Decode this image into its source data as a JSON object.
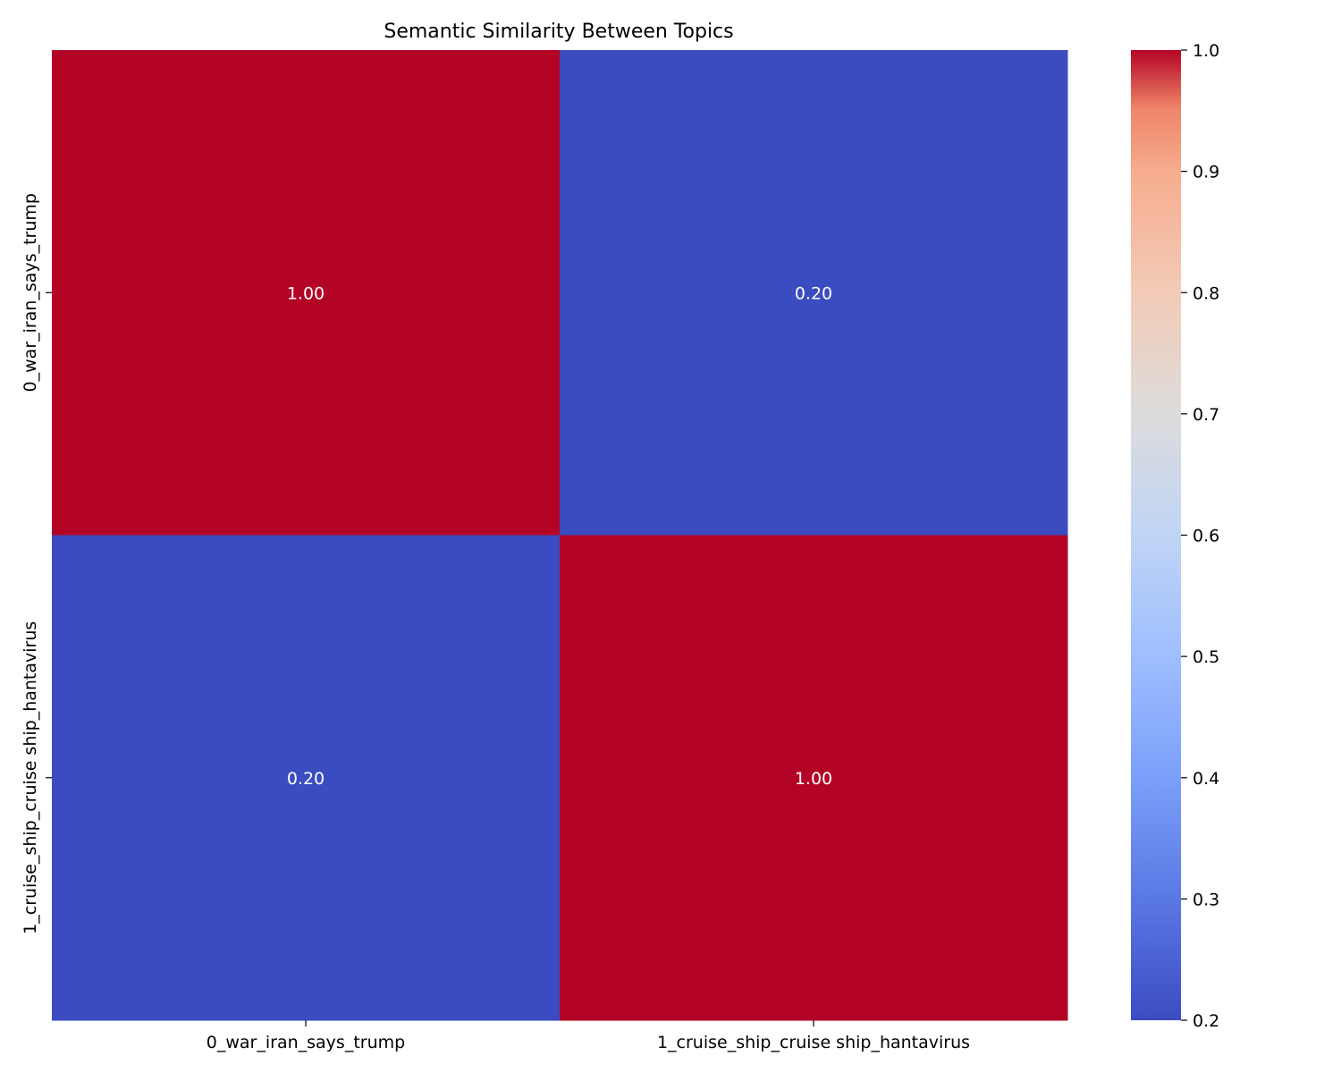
{
  "chart_data": {
    "type": "heatmap",
    "title": "Semantic Similarity Between Topics",
    "xlabel": "",
    "ylabel": "",
    "x_categories": [
      "0_war_iran_says_trump",
      "1_cruise_ship_cruise ship_hantavirus"
    ],
    "y_categories": [
      "0_war_iran_says_trump",
      "1_cruise_ship_cruise ship_hantavirus"
    ],
    "values": [
      [
        1.0,
        0.2
      ],
      [
        0.2,
        1.0
      ]
    ],
    "cell_labels": [
      [
        "1.00",
        "0.20"
      ],
      [
        "0.20",
        "1.00"
      ]
    ],
    "colormap": "coolwarm",
    "colors": {
      "low": "#3b4cc0",
      "high": "#b40426"
    },
    "colorbar": {
      "range": [
        0.2,
        1.0
      ],
      "ticks": [
        "0.2",
        "0.3",
        "0.4",
        "0.5",
        "0.6",
        "0.7",
        "0.8",
        "0.9",
        "1.0"
      ]
    }
  }
}
